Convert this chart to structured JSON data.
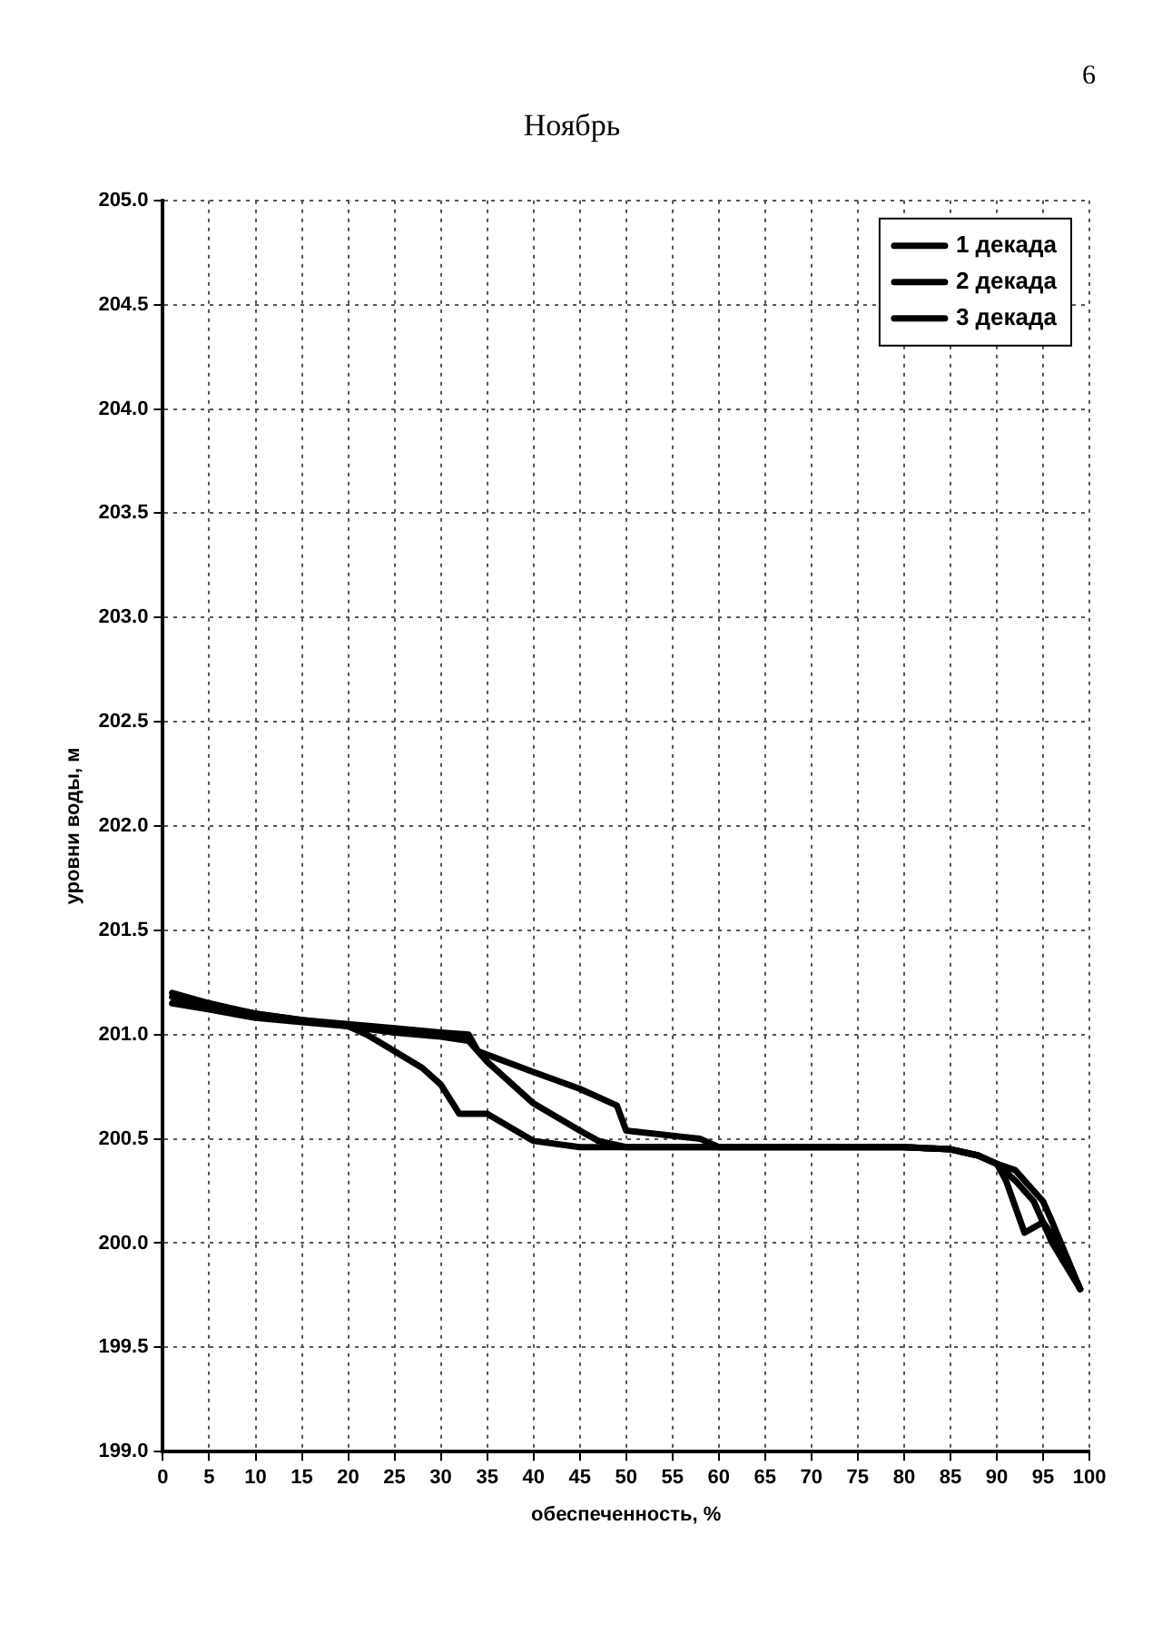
{
  "chart_data": {
    "type": "line",
    "title": "Ноябрь",
    "xlabel": "обеспеченность, %",
    "ylabel": "уровни воды, м",
    "annotations": [
      "6"
    ],
    "series": [
      {
        "name": "1 декада",
        "color": "#000000",
        "x": [
          1,
          5,
          10,
          15,
          20,
          22,
          25,
          28,
          30,
          32,
          35,
          40,
          45,
          50,
          60,
          70,
          80,
          85,
          88,
          90,
          92,
          94,
          96,
          99
        ],
        "values": [
          201.2,
          201.15,
          201.1,
          201.07,
          201.04,
          201.0,
          200.92,
          200.84,
          200.76,
          200.62,
          200.62,
          200.49,
          200.46,
          200.46,
          200.46,
          200.46,
          200.46,
          200.45,
          200.42,
          200.38,
          200.3,
          200.2,
          200.0,
          199.78
        ]
      },
      {
        "name": "2 декада",
        "color": "#000000",
        "x": [
          1,
          5,
          10,
          15,
          20,
          25,
          30,
          33,
          35,
          40,
          45,
          47,
          50,
          60,
          70,
          80,
          85,
          88,
          90,
          91,
          93,
          95,
          97,
          99
        ],
        "values": [
          201.15,
          201.12,
          201.08,
          201.06,
          201.04,
          201.01,
          200.99,
          200.97,
          200.87,
          200.67,
          200.54,
          200.49,
          200.46,
          200.46,
          200.46,
          200.46,
          200.45,
          200.42,
          200.38,
          200.3,
          200.05,
          200.1,
          199.98,
          199.78
        ]
      },
      {
        "name": "3 декада",
        "color": "#000000",
        "x": [
          1,
          5,
          10,
          15,
          20,
          25,
          30,
          33,
          34,
          40,
          45,
          49,
          50,
          58,
          60,
          70,
          80,
          85,
          88,
          90,
          92,
          94,
          95,
          96,
          99
        ],
        "values": [
          201.18,
          201.14,
          201.1,
          201.07,
          201.05,
          201.03,
          201.01,
          201.0,
          200.92,
          200.82,
          200.74,
          200.66,
          200.54,
          200.5,
          200.46,
          200.46,
          200.46,
          200.45,
          200.42,
          200.38,
          200.35,
          200.25,
          200.2,
          200.1,
          199.78
        ]
      }
    ],
    "xlim": [
      0,
      100
    ],
    "xticks": [
      0,
      5,
      10,
      15,
      20,
      25,
      30,
      35,
      40,
      45,
      50,
      55,
      60,
      65,
      70,
      75,
      80,
      85,
      90,
      95,
      100
    ],
    "ylim": [
      199,
      205
    ],
    "yticks": [
      {
        "value": 199,
        "label": "199.0"
      },
      {
        "value": 199.5,
        "label": "199.5"
      },
      {
        "value": 200,
        "label": "200.0"
      },
      {
        "value": 200.5,
        "label": "200.5"
      },
      {
        "value": 201,
        "label": "201.0"
      },
      {
        "value": 201.5,
        "label": "201.5"
      },
      {
        "value": 202,
        "label": "202.0"
      },
      {
        "value": 202.5,
        "label": "202.5"
      },
      {
        "value": 203,
        "label": "203.0"
      },
      {
        "value": 203.5,
        "label": "203.5"
      },
      {
        "value": 204,
        "label": "204.0"
      },
      {
        "value": 204.5,
        "label": "204.5"
      },
      {
        "value": 205,
        "label": "205.0"
      }
    ],
    "grid": true,
    "legend": "top right",
    "marker": "none",
    "line_style": "solid"
  }
}
